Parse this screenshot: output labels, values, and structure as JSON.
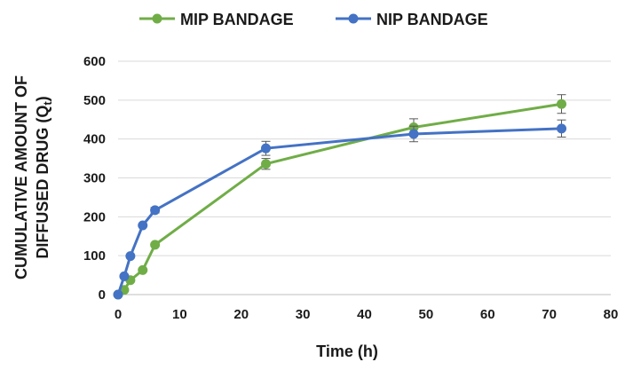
{
  "chart_data": {
    "type": "line",
    "xlabel": "Time (h)",
    "ylabel_line1": "CUMULATIVE AMOUNT OF",
    "ylabel_line2_main": "DIFFUSED DRUG (Q",
    "ylabel_line2_sub": "t",
    "ylabel_line2_close": ")",
    "xlim": [
      0,
      80
    ],
    "ylim": [
      0,
      600
    ],
    "xticks": [
      0,
      10,
      20,
      30,
      40,
      50,
      60,
      70,
      80
    ],
    "yticks": [
      0,
      100,
      200,
      300,
      400,
      500,
      600
    ],
    "grid": "horizontal",
    "legend_position": "top",
    "series": [
      {
        "name": "MIP BANDAGE",
        "color": "#70ad47",
        "x": [
          0,
          1,
          2,
          4,
          6,
          24,
          48,
          72
        ],
        "y": [
          0,
          12,
          37,
          63,
          128,
          336,
          430,
          490
        ],
        "error": [
          0,
          0,
          0,
          0,
          0,
          14,
          22,
          24
        ]
      },
      {
        "name": "NIP BANDAGE",
        "color": "#4472c4",
        "x": [
          0,
          1,
          2,
          4,
          6,
          24,
          48,
          72
        ],
        "y": [
          0,
          47,
          99,
          178,
          217,
          376,
          413,
          427
        ],
        "error": [
          0,
          0,
          0,
          0,
          7,
          18,
          20,
          22
        ]
      }
    ]
  }
}
